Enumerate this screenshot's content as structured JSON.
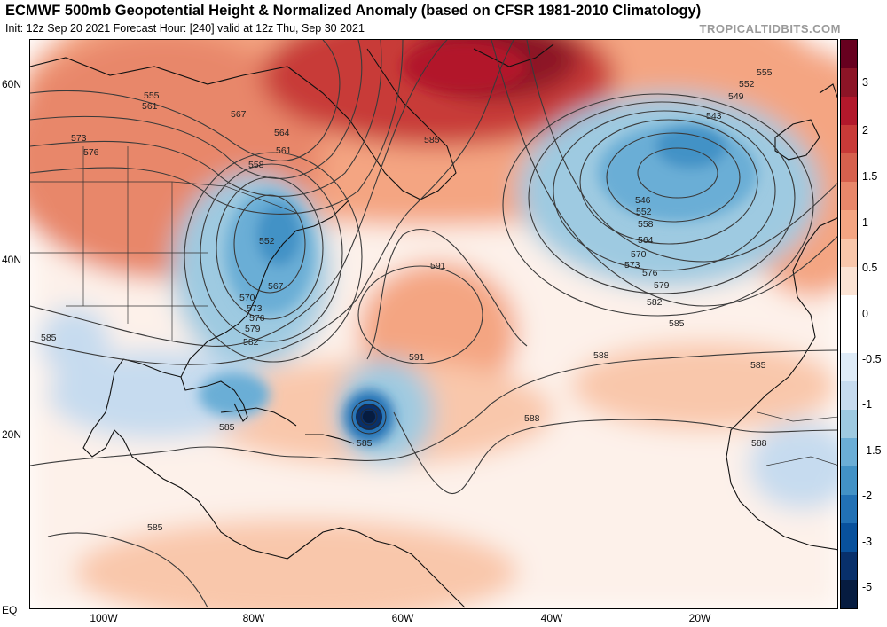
{
  "header": {
    "title": "ECMWF 500mb Geopotential Height & Normalized Anomaly (based on CFSR 1981-2010 Climatology)",
    "subtitle": "Init: 12z Sep 20 2021   Forecast Hour: [240]   valid at 12z Thu, Sep 30 2021",
    "brand": "TROPICALTIDBITS.COM"
  },
  "axes": {
    "lat_labels": [
      "60N",
      "40N",
      "20N",
      "EQ"
    ],
    "lon_labels": [
      "100W",
      "80W",
      "60W",
      "40W",
      "20W"
    ]
  },
  "colorbar": {
    "labels": [
      "3",
      "2",
      "1.5",
      "1",
      "0.5",
      "0",
      "-0.5",
      "-1",
      "-1.5",
      "-2",
      "-3",
      "-5"
    ],
    "colors": [
      "#67001f",
      "#8c1426",
      "#b2182b",
      "#c83a38",
      "#d6604d",
      "#e8876a",
      "#f4a582",
      "#f9c7ab",
      "#fbe3d4",
      "#ffffff",
      "#ffffff",
      "#deebf7",
      "#c6dbef",
      "#9ecae1",
      "#6baed6",
      "#4292c6",
      "#2171b5",
      "#08519c",
      "#08306b",
      "#061c40"
    ]
  },
  "contour_labels": {
    "c555a": "555",
    "c561": "561",
    "c573a": "573",
    "c576a": "576",
    "c567": "567",
    "c564": "564",
    "c561b": "561",
    "c558": "558",
    "c552": "552",
    "c567b": "567",
    "c570": "570",
    "c573b": "573",
    "c576b": "576",
    "c579": "579",
    "c582": "582",
    "c585a": "585",
    "c585b": "585",
    "c585c": "585",
    "c585d": "585",
    "c585e": "585",
    "c591a": "591",
    "c591b": "591",
    "c588a": "588",
    "c588b": "588",
    "c588c": "588",
    "c555b": "555",
    "c552b": "552",
    "c549": "549",
    "c543": "543",
    "c546": "546",
    "c552c": "552",
    "c558b": "558",
    "c564b": "564",
    "c570b": "570",
    "c573c": "573",
    "c576c": "576",
    "c579b": "579",
    "c582b": "582",
    "c585f": "585",
    "c585g": "585"
  }
}
